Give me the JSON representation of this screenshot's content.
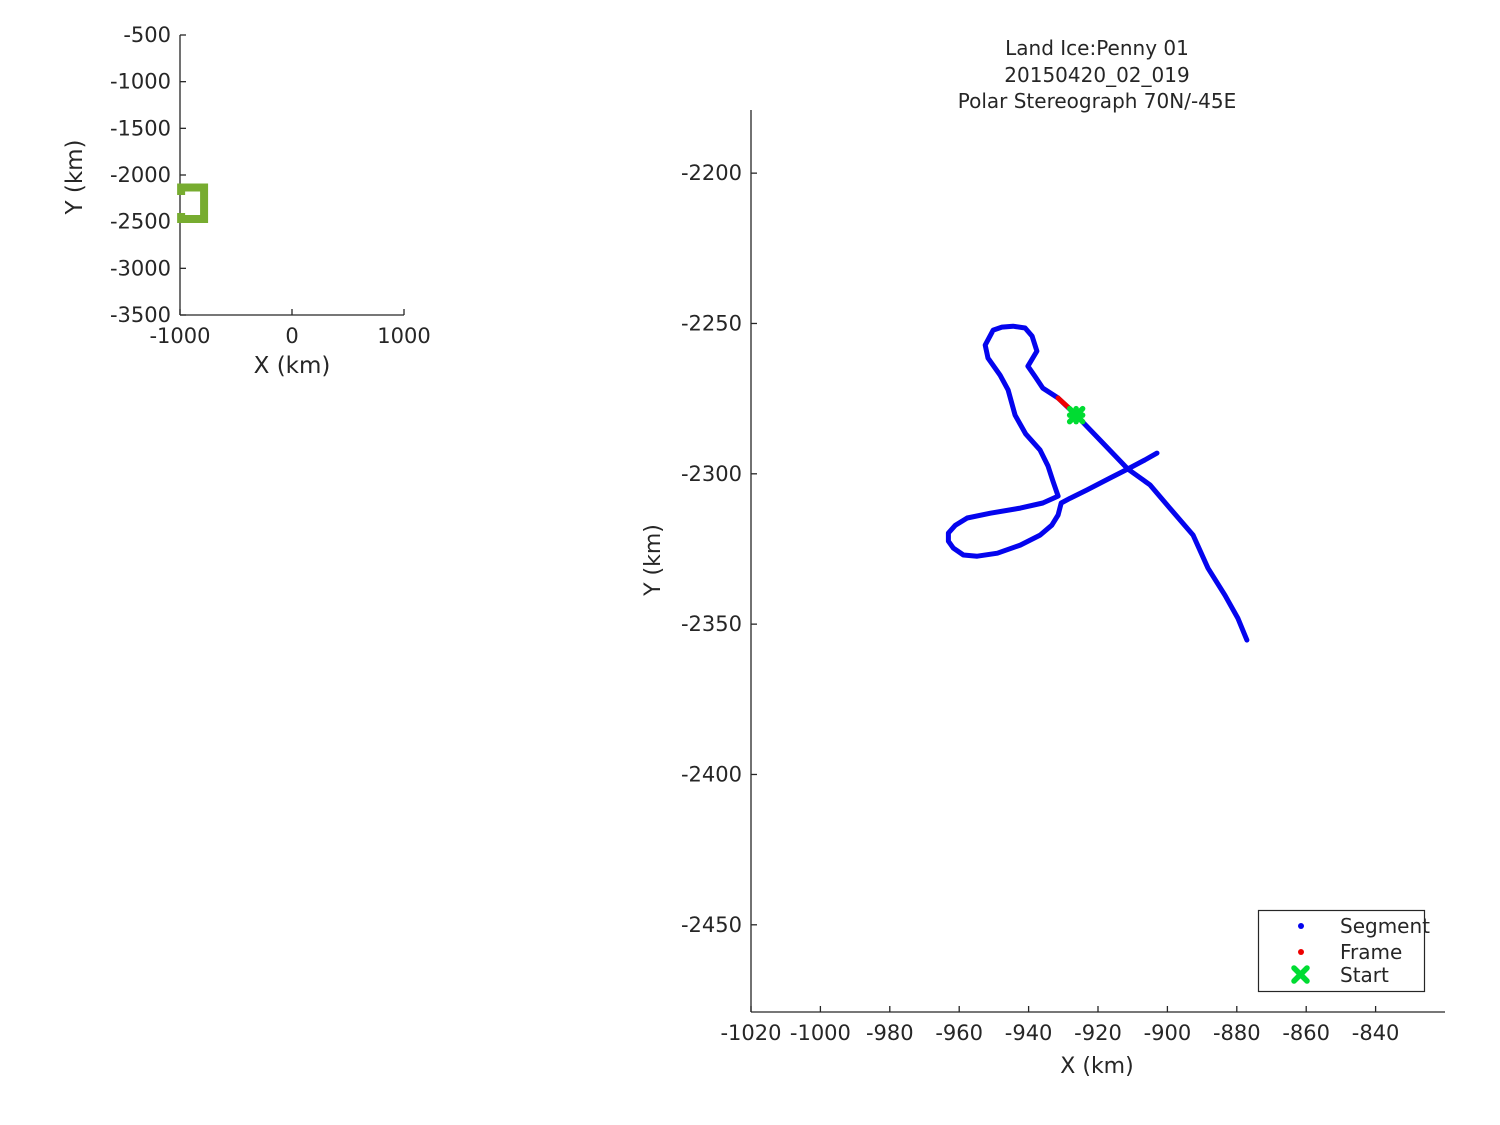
{
  "figure": {
    "background": "#ffffff",
    "text_color": "#262626",
    "spine_color": "#262626"
  },
  "chart_data": [
    {
      "id": "overview",
      "type": "line",
      "role": "overview-map",
      "xlabel": "X (km)",
      "ylabel": "Y (km)",
      "xlim": [
        -1000,
        1000
      ],
      "ylim": [
        -3500,
        -500
      ],
      "xticks": [
        -1000,
        0,
        1000
      ],
      "yticks": [
        -500,
        -1000,
        -1500,
        -2000,
        -2500,
        -3000,
        -3500
      ],
      "grid": false,
      "track_color": "#77AC30",
      "track_box": {
        "x_km": [
          -990,
          -785
        ],
        "y_km": [
          -2471,
          -2134
        ],
        "left_gap_y_km": [
          -2407,
          -2214
        ]
      }
    },
    {
      "id": "main",
      "type": "line",
      "role": "flightline-detail",
      "title_lines": [
        "Land Ice:Penny 01",
        "20150420_02_019",
        "Polar Stereograph 70N/-45E"
      ],
      "xlabel": "X (km)",
      "ylabel": "Y (km)",
      "xlim": [
        -1020,
        -820
      ],
      "ylim": [
        -2479,
        -2179
      ],
      "xticks": [
        -1020,
        -1000,
        -980,
        -960,
        -940,
        -920,
        -900,
        -880,
        -860,
        -840
      ],
      "yticks": [
        -2450,
        -2400,
        -2350,
        -2300,
        -2250,
        -2200
      ],
      "grid": false,
      "colors": {
        "segment": "#0404EE",
        "frame": "#EE0000",
        "start": "#00DC32"
      },
      "segment_path_km": [
        [
          -877.1,
          -2355.3
        ],
        [
          -879.7,
          -2348.0
        ],
        [
          -883.4,
          -2340.4
        ],
        [
          -888.3,
          -2331.4
        ],
        [
          -892.6,
          -2320.4
        ],
        [
          -899.3,
          -2311.4
        ],
        [
          -905.0,
          -2303.7
        ],
        [
          -911.4,
          -2298.4
        ],
        [
          -919.4,
          -2288.8
        ],
        [
          -926.3,
          -2280.5
        ],
        [
          -931.5,
          -2274.8
        ],
        [
          -935.9,
          -2271.5
        ],
        [
          -938.2,
          -2267.5
        ],
        [
          -940.2,
          -2264.2
        ],
        [
          -937.6,
          -2259.2
        ],
        [
          -939.0,
          -2254.2
        ],
        [
          -941.0,
          -2251.5
        ],
        [
          -944.5,
          -2250.9
        ],
        [
          -947.7,
          -2251.2
        ],
        [
          -950.2,
          -2252.2
        ],
        [
          -952.5,
          -2257.2
        ],
        [
          -951.7,
          -2261.5
        ],
        [
          -948.2,
          -2267.2
        ],
        [
          -945.9,
          -2272.1
        ],
        [
          -943.9,
          -2280.5
        ],
        [
          -940.8,
          -2286.8
        ],
        [
          -936.7,
          -2292.1
        ],
        [
          -934.4,
          -2297.4
        ],
        [
          -933.0,
          -2302.4
        ],
        [
          -931.5,
          -2307.4
        ],
        [
          -935.9,
          -2309.7
        ],
        [
          -942.4,
          -2311.4
        ],
        [
          -951.0,
          -2313.1
        ],
        [
          -957.7,
          -2314.7
        ],
        [
          -961.1,
          -2317.1
        ],
        [
          -963.1,
          -2319.7
        ],
        [
          -963.1,
          -2322.4
        ],
        [
          -961.7,
          -2324.7
        ],
        [
          -958.8,
          -2327.0
        ],
        [
          -954.8,
          -2327.4
        ],
        [
          -949.0,
          -2326.4
        ],
        [
          -942.4,
          -2323.7
        ],
        [
          -936.7,
          -2320.4
        ],
        [
          -933.3,
          -2317.1
        ],
        [
          -931.5,
          -2313.7
        ],
        [
          -930.6,
          -2309.7
        ],
        [
          -928.0,
          -2308.1
        ],
        [
          -923.2,
          -2305.4
        ],
        [
          -916.5,
          -2301.4
        ],
        [
          -911.4,
          -2298.4
        ],
        [
          -906.5,
          -2295.4
        ],
        [
          -903.0,
          -2293.1
        ]
      ],
      "frame_path_km": [
        [
          -931.5,
          -2274.8
        ],
        [
          -927.7,
          -2278.8
        ]
      ],
      "start_km": [
        -926.3,
        -2280.5
      ],
      "legend": {
        "position": "bottom-right",
        "items": [
          {
            "label": "Segment",
            "marker": "dot",
            "color": "#0404EE"
          },
          {
            "label": "Frame",
            "marker": "dot",
            "color": "#EE0000"
          },
          {
            "label": "Start",
            "marker": "x",
            "color": "#00DC32"
          }
        ]
      }
    }
  ]
}
